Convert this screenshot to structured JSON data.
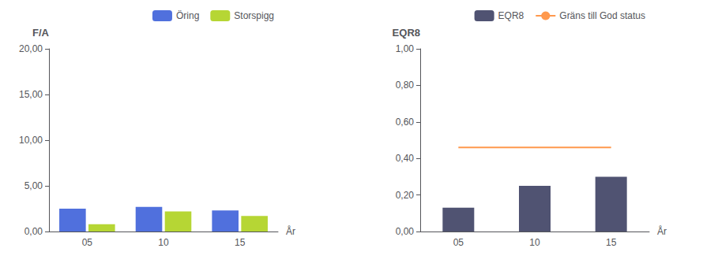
{
  "chart_data": [
    {
      "type": "bar",
      "xlabel": "År",
      "ylabel": "F/A",
      "categories": [
        "05",
        "10",
        "15"
      ],
      "series": [
        {
          "name": "Öring",
          "values": [
            2.5,
            2.7,
            2.3
          ]
        },
        {
          "name": "Storspigg",
          "values": [
            0.8,
            2.2,
            1.7
          ]
        }
      ],
      "ylim": [
        0,
        20
      ],
      "yticks": [
        {
          "value": 0.0,
          "label": "0,00"
        },
        {
          "value": 5.0,
          "label": "5,00"
        },
        {
          "value": 10.0,
          "label": "10,00"
        },
        {
          "value": 15.0,
          "label": "15,00"
        },
        {
          "value": 20.0,
          "label": "20,00"
        }
      ],
      "grid": false,
      "legend": "top"
    },
    {
      "type": "bar",
      "xlabel": "År",
      "ylabel": "EQR8",
      "categories": [
        "05",
        "10",
        "15"
      ],
      "series": [
        {
          "name": "EQR8",
          "values": [
            0.13,
            0.25,
            0.3
          ]
        },
        {
          "name": "Gräns till God status",
          "type": "line",
          "values": [
            0.46,
            0.46,
            0.46
          ]
        }
      ],
      "ylim": [
        0,
        1.0
      ],
      "yticks": [
        {
          "value": 0.0,
          "label": "0,00"
        },
        {
          "value": 0.2,
          "label": "0,20"
        },
        {
          "value": 0.4,
          "label": "0,40"
        },
        {
          "value": 0.6,
          "label": "0,60"
        },
        {
          "value": 0.8,
          "label": "0,80"
        },
        {
          "value": 1.0,
          "label": "1,00"
        }
      ],
      "grid": false,
      "legend": "top"
    }
  ]
}
